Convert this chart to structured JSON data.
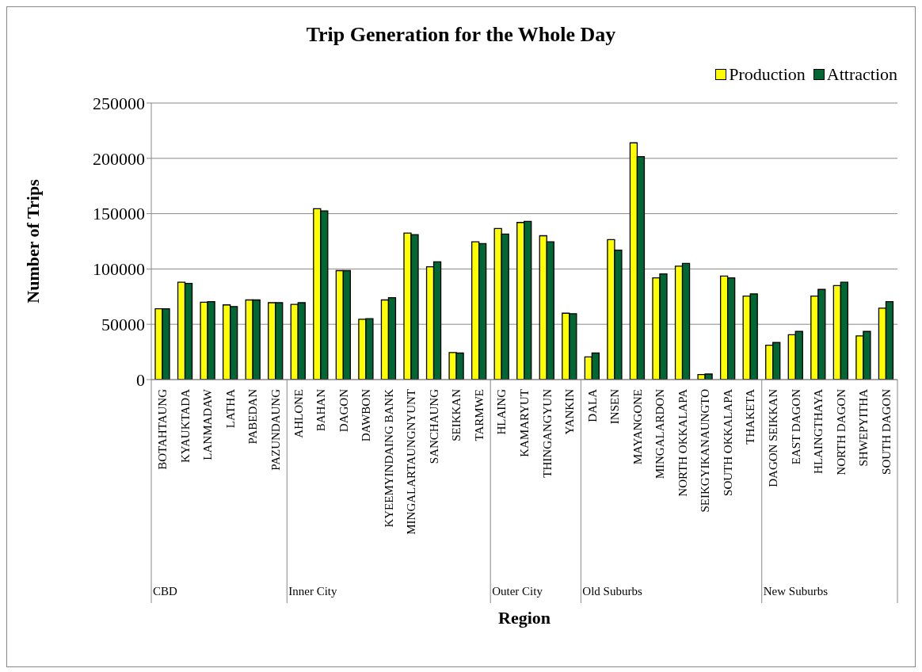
{
  "chart_data": {
    "type": "bar",
    "title": "Trip Generation for the Whole Day",
    "xlabel": "Region",
    "ylabel": "Number of Trips",
    "categories": [
      "BOTAHTAUNG",
      "KYAUKTADA",
      "LANMADAW",
      "LATHA",
      "PABEDAN",
      "PAZUNDAUNG",
      "AHLONE",
      "BAHAN",
      "DAGON",
      "DAWBON",
      "KYEEMYINDAING BANK",
      "MINGALARTAUNGNYUNT",
      "SANCHAUNG",
      "SEIKKAN",
      "TARMWE",
      "HLAING",
      "KAMARYUT",
      "THINGANGYUN",
      "YANKIN",
      "DALA",
      "INSEN",
      "MAYANGONE",
      "MINGALARDON",
      "NORTH OKKALAPA",
      "SEIKGYIKANAUNGTO",
      "SOUTH OKKALAPA",
      "THAKETA",
      "DAGON SEIKKAN",
      "EAST DAGON",
      "HLAINGTHAYA",
      "NORTH DAGON",
      "SHWEPYITHA",
      "SOUTH DAGON"
    ],
    "series": [
      {
        "name": "Production",
        "color": "#ffff00",
        "values": [
          64000,
          88000,
          70000,
          67500,
          72000,
          69500,
          68000,
          154500,
          98500,
          54500,
          72000,
          132500,
          102000,
          24500,
          124500,
          136500,
          142000,
          130000,
          60000,
          20500,
          126500,
          214000,
          92000,
          102500,
          4500,
          93500,
          75500,
          31000,
          40500,
          75500,
          85000,
          39500,
          64500
        ]
      },
      {
        "name": "Attraction",
        "color": "#006633",
        "values": [
          64000,
          87000,
          70500,
          66000,
          72000,
          69500,
          69500,
          152500,
          98500,
          55000,
          74000,
          131000,
          106500,
          24000,
          123000,
          131500,
          143000,
          124500,
          59500,
          24000,
          117000,
          201500,
          95500,
          105000,
          5000,
          92000,
          77500,
          33500,
          43500,
          81500,
          88000,
          43500,
          70500
        ]
      }
    ],
    "ylim": [
      0,
      250000
    ],
    "yticks": [
      0,
      50000,
      100000,
      150000,
      200000,
      250000
    ],
    "grid": "y",
    "legend": "top right",
    "annotations": [
      "CBD",
      "Inner City",
      "Outer City",
      "Old Suburbs",
      "New Suburbs"
    ]
  }
}
